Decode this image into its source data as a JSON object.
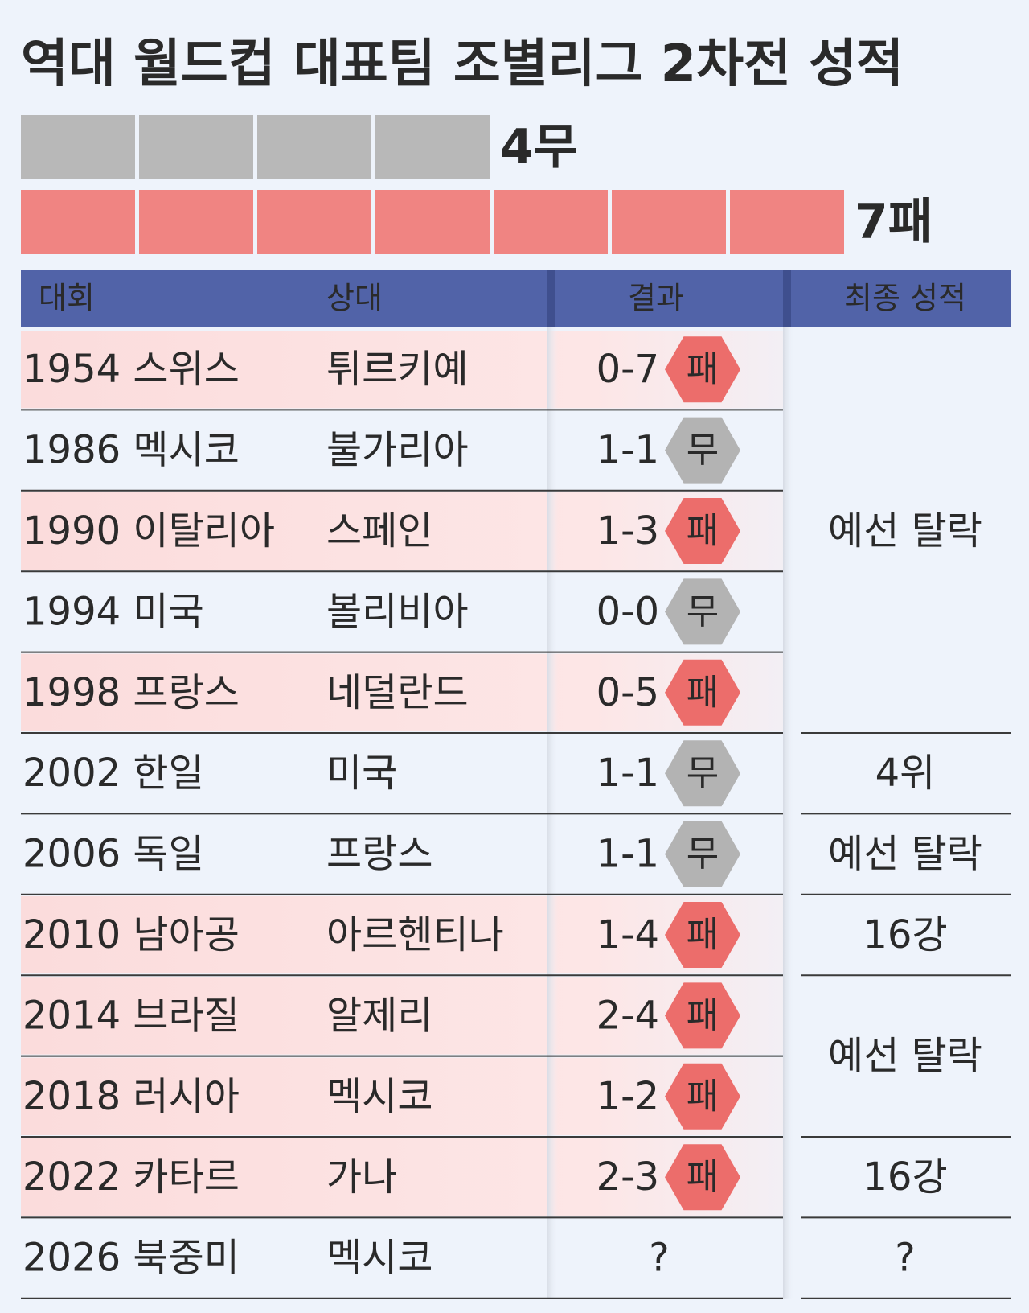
{
  "header": {
    "title": "역대 월드컵 대표팀 조별리그 2차전 성적"
  },
  "tally": [
    {
      "count": 4,
      "label": "4무"
    },
    {
      "count": 7,
      "label": "7패"
    }
  ],
  "table": {
    "columns": [
      "대회",
      "상대",
      "결과",
      "최종 성적"
    ],
    "rows": [
      {
        "event": "1954 스위스",
        "opponent": "튀르키예",
        "score": "0-7",
        "result": "패",
        "final": "예선 탈락"
      },
      {
        "event": "1986 멕시코",
        "opponent": "불가리아",
        "score": "1-1",
        "result": "무",
        "final": null
      },
      {
        "event": "1990 이탈리아",
        "opponent": "스페인",
        "score": "1-3",
        "result": "패",
        "final": null
      },
      {
        "event": "1994 미국",
        "opponent": "볼리비아",
        "score": "0-0",
        "result": "무",
        "final": null
      },
      {
        "event": "1998 프랑스",
        "opponent": "네덜란드",
        "score": "0-5",
        "result": "패",
        "final": null
      },
      {
        "event": "2002 한일",
        "opponent": "미국",
        "score": "1-1",
        "result": "무",
        "final": "4위"
      },
      {
        "event": "2006 독일",
        "opponent": "프랑스",
        "score": "1-1",
        "result": "무",
        "final": "예선 탈락"
      },
      {
        "event": "2010 남아공",
        "opponent": "아르헨티나",
        "score": "1-4",
        "result": "패",
        "final": "16강"
      },
      {
        "event": "2014 브라질",
        "opponent": "알제리",
        "score": "2-4",
        "result": "패",
        "final": "예선 탈락"
      },
      {
        "event": "2018 러시아",
        "opponent": "멕시코",
        "score": "1-2",
        "result": "패",
        "final": null
      },
      {
        "event": "2022 카타르",
        "opponent": "가나",
        "score": "2-3",
        "result": "패",
        "final": "16강"
      },
      {
        "event": "2026 북중미",
        "opponent": "멕시코",
        "score": "?",
        "result": null,
        "final": "?"
      }
    ]
  }
}
